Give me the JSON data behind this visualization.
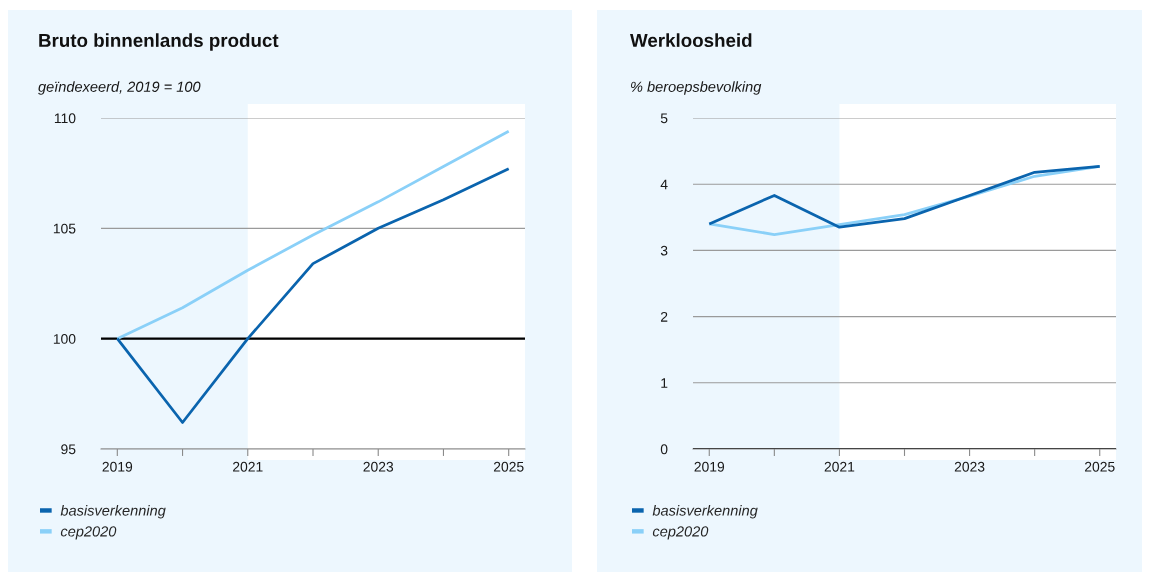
{
  "chart_data": [
    {
      "type": "line",
      "title": "Bruto binnenlands product",
      "ylabel": "geïndexeerd, 2019 = 100",
      "x": [
        2019,
        2020,
        2021,
        2022,
        2023,
        2024,
        2025
      ],
      "series": [
        {
          "name": "basisverkenning",
          "color": "#0a64ae",
          "values": [
            100,
            96.2,
            100.0,
            103.4,
            105.0,
            106.3,
            107.7
          ]
        },
        {
          "name": "cep2020",
          "color": "#8ad0f8",
          "values": [
            100,
            101.4,
            103.1,
            104.7,
            106.2,
            107.8,
            109.4
          ]
        }
      ],
      "xlim": [
        2018.75,
        2025.25
      ],
      "ylim": [
        95,
        110
      ],
      "xticks": [
        2019,
        {
          "value": 2020,
          "label": null
        },
        2021,
        {
          "value": 2022,
          "label": null
        },
        2023,
        {
          "value": 2024,
          "label": null
        },
        2025
      ],
      "yticks": [
        95,
        100,
        105,
        110
      ],
      "grid": "y",
      "legend": "bottom left",
      "ref_lines": [
        {
          "axis": "y",
          "value": 100,
          "color": "#000000"
        }
      ],
      "bands": [
        {
          "axis": "x",
          "from": 2021,
          "to": 2025.25,
          "color": "#ffffff"
        }
      ]
    },
    {
      "type": "line",
      "title": "Werkloosheid",
      "ylabel": "% beroepsbevolking",
      "x": [
        2019,
        2020,
        2021,
        2022,
        2023,
        2024,
        2025
      ],
      "series": [
        {
          "name": "basisverkenning",
          "color": "#0a64ae",
          "values": [
            3.4,
            3.83,
            3.35,
            3.48,
            3.83,
            4.18,
            4.27
          ]
        },
        {
          "name": "cep2020",
          "color": "#8ad0f8",
          "values": [
            3.4,
            3.24,
            3.39,
            3.54,
            3.82,
            4.12,
            4.27
          ]
        }
      ],
      "xlim": [
        2018.75,
        2025.25
      ],
      "ylim": [
        0,
        5
      ],
      "xticks": [
        2019,
        {
          "value": 2020,
          "label": null
        },
        2021,
        {
          "value": 2022,
          "label": null
        },
        2023,
        {
          "value": 2024,
          "label": null
        },
        2025
      ],
      "yticks": [
        0,
        1,
        2,
        3,
        4,
        5
      ],
      "grid": "y",
      "legend": "bottom left",
      "ref_lines": [
        {
          "axis": "y",
          "value": 0,
          "color": "#000000"
        }
      ],
      "bands": [
        {
          "axis": "x",
          "from": 2021,
          "to": 2025.25,
          "color": "#ffffff"
        }
      ]
    }
  ]
}
